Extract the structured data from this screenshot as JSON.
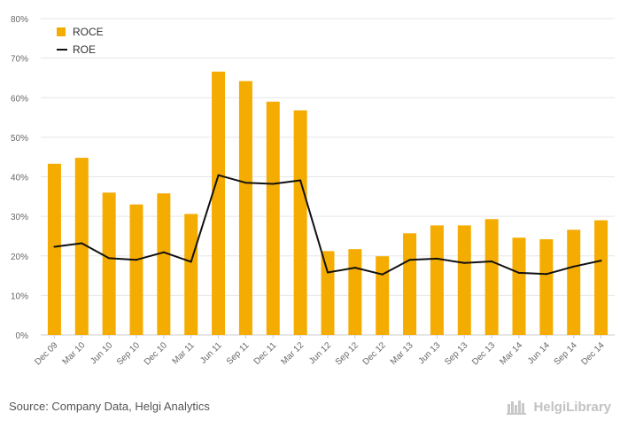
{
  "chart_data": {
    "type": "bar",
    "categories": [
      "Dec 09",
      "Mar 10",
      "Jun 10",
      "Sep 10",
      "Dec 10",
      "Mar 11",
      "Jun 11",
      "Sep 11",
      "Dec 11",
      "Mar 12",
      "Jun 12",
      "Sep 12",
      "Dec 12",
      "Mar 13",
      "Jun 13",
      "Sep 13",
      "Dec 13",
      "Mar 14",
      "Jun 14",
      "Sep 14",
      "Dec 14"
    ],
    "series": [
      {
        "name": "ROCE",
        "type": "bar",
        "color": "#f5ac00",
        "values": [
          43.3,
          44.8,
          36.0,
          33.0,
          35.8,
          30.6,
          66.6,
          64.2,
          59.0,
          56.8,
          21.2,
          21.7,
          19.9,
          25.7,
          27.7,
          27.7,
          29.3,
          24.6,
          24.2,
          26.6,
          29.0
        ]
      },
      {
        "name": "ROE",
        "type": "line",
        "color": "#111111",
        "values": [
          22.3,
          23.2,
          19.4,
          19.0,
          20.9,
          18.5,
          40.4,
          38.5,
          38.2,
          39.1,
          15.8,
          17.0,
          15.3,
          19.0,
          19.3,
          18.2,
          18.6,
          15.7,
          15.4,
          17.3,
          18.8
        ]
      }
    ],
    "yticks": [
      "0%",
      "10%",
      "20%",
      "30%",
      "40%",
      "50%",
      "60%",
      "70%",
      "80%"
    ],
    "ylim": [
      0,
      80
    ],
    "grid": true,
    "legend_position": "top-left"
  },
  "legend": {
    "items": [
      {
        "label": "ROCE",
        "color": "#f5ac00",
        "marker": "bar"
      },
      {
        "label": "ROE",
        "color": "#111111",
        "marker": "line"
      }
    ]
  },
  "footer": {
    "source": "Source: Company Data, Helgi Analytics",
    "brand": "HelgiLibrary"
  }
}
